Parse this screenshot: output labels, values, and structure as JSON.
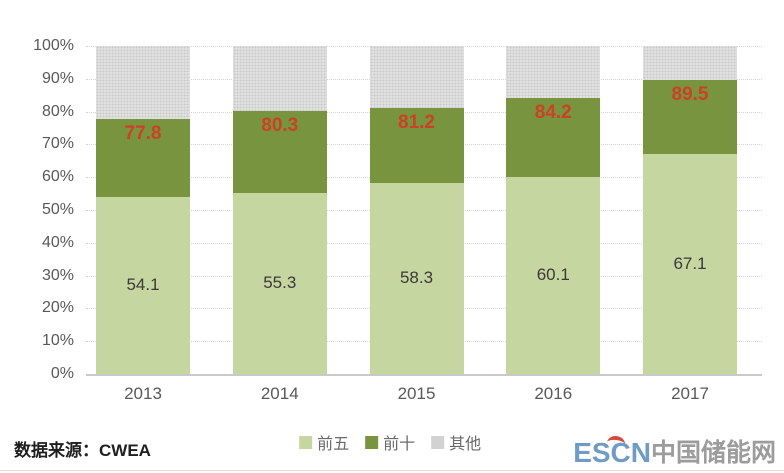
{
  "chart_data": {
    "type": "bar",
    "stacked": true,
    "categories": [
      "2013",
      "2014",
      "2015",
      "2016",
      "2017"
    ],
    "series": [
      {
        "name": "前五",
        "values": [
          54.1,
          55.3,
          58.3,
          60.1,
          67.1
        ],
        "color": "#c6d6a0",
        "label_color": "#3a3a3a",
        "labels_shown": true
      },
      {
        "name": "前十",
        "values": [
          77.8,
          80.3,
          81.2,
          84.2,
          89.5
        ],
        "cumulative": true,
        "color": "#78943e",
        "label_color": "#cc4125",
        "labels_shown": true
      },
      {
        "name": "其他",
        "remainder_to": 100,
        "color": "#d9d9d9",
        "labels_shown": false
      }
    ],
    "ylim": [
      0,
      100
    ],
    "y_ticks": [
      "0%",
      "10%",
      "20%",
      "30%",
      "40%",
      "50%",
      "60%",
      "70%",
      "80%",
      "90%",
      "100%"
    ],
    "grid": "horizontal-dotted",
    "legend_position": "bottom-center",
    "title": ""
  },
  "footer": {
    "source": "数据来源：CWEA"
  },
  "logo": {
    "escn": "ESCN",
    "site_name": "中国储能网"
  },
  "colors": {
    "top5_green": "#c6d6a0",
    "top10_green": "#78943e",
    "others_gray": "#d9d9d9",
    "cumulative_label_red": "#cc4125",
    "axis_text_gray": "#595959",
    "escn_blue": "#6f9cc4",
    "escn_accent_red": "#d44a3a",
    "site_gray": "#9c9c9c"
  }
}
